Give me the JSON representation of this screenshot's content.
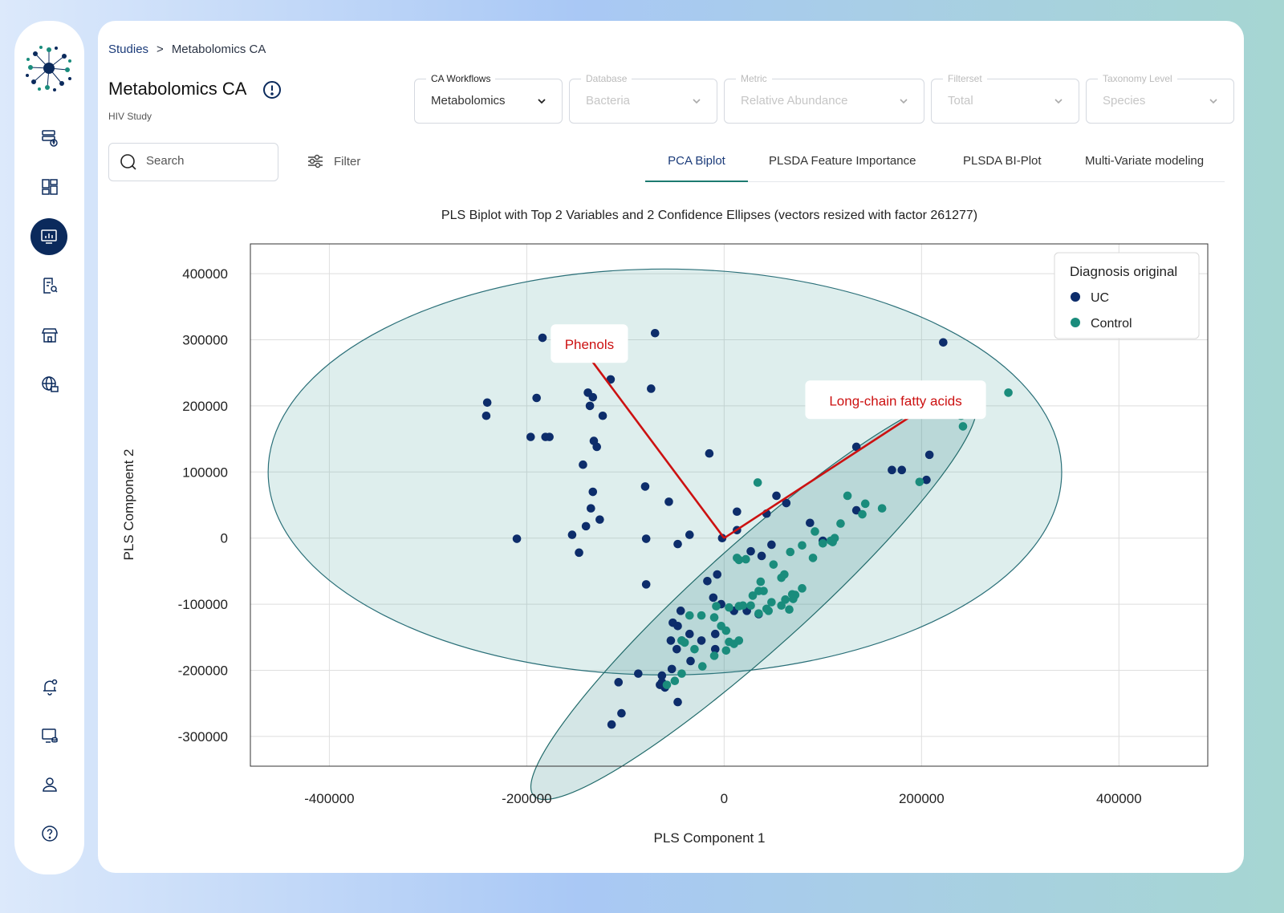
{
  "breadcrumb": {
    "root": "Studies",
    "separator": ">",
    "current": "Metabolomics CA"
  },
  "page": {
    "title": "Metabolomics CA",
    "subtitle": "HIV Study"
  },
  "dropdowns": [
    {
      "label": "CA Workflows",
      "value": "Metabolomics",
      "enabled": true
    },
    {
      "label": "Database",
      "value": "Bacteria",
      "enabled": false
    },
    {
      "label": "Metric",
      "value": "Relative Abundance",
      "enabled": false
    },
    {
      "label": "Filterset",
      "value": "Total",
      "enabled": false
    },
    {
      "label": "Taxonomy Level",
      "value": "Species",
      "enabled": false
    }
  ],
  "search": {
    "placeholder": "Search"
  },
  "filter": {
    "label": "Filter"
  },
  "tabs": [
    {
      "label": "PCA Biplot",
      "active": true
    },
    {
      "label": "PLSDA Feature Importance",
      "active": false
    },
    {
      "label": "PLSDA BI-Plot",
      "active": false
    },
    {
      "label": "Multi-Variate modeling",
      "active": false
    }
  ],
  "sidebar": {
    "items": [
      {
        "icon": "database-upload-icon"
      },
      {
        "icon": "dashboard-icon"
      },
      {
        "icon": "analytics-monitor-icon",
        "active": true
      },
      {
        "icon": "document-search-icon"
      },
      {
        "icon": "store-icon"
      },
      {
        "icon": "globe-server-icon"
      }
    ],
    "bottom_items": [
      {
        "icon": "notification-bell-icon"
      },
      {
        "icon": "monitor-database-icon"
      },
      {
        "icon": "user-icon"
      },
      {
        "icon": "help-icon"
      }
    ]
  },
  "colors": {
    "uc": "#0d2d6b",
    "control": "#1a8c7c",
    "vector": "#cc1111",
    "accent": "#1c3c7a"
  },
  "chart_data": {
    "type": "scatter",
    "title": "PLS Biplot with Top 2 Variables and 2 Confidence Ellipses (vectors resized with factor 261277)",
    "xlabel": "PLS  Component 1",
    "ylabel": "PLS  Component 2",
    "xlim": [
      -480000,
      490000
    ],
    "ylim": [
      -345000,
      445000
    ],
    "xticks": [
      -400000,
      -200000,
      0,
      200000,
      400000
    ],
    "yticks": [
      400000,
      300000,
      200000,
      100000,
      0,
      -100000,
      -200000,
      -300000
    ],
    "grid": true,
    "legend": {
      "title": "Diagnosis original",
      "placement": "top-right"
    },
    "vectors": [
      {
        "label": "Phenols",
        "x0": 0,
        "y0": 0,
        "x1": -135000,
        "y1": 270000
      },
      {
        "label": "Long-chain fatty acids",
        "x0": 0,
        "y0": 0,
        "x1": 190000,
        "y1": 185000
      }
    ],
    "ellipses": [
      {
        "series": "UC",
        "cx": -60000,
        "cy": 100000,
        "rx": 402000,
        "ry": 307000,
        "angle": 0
      },
      {
        "series": "Control",
        "cx": 30000,
        "cy": -90000,
        "rx": 300000,
        "ry": 80000,
        "angle": 42
      }
    ],
    "series": [
      {
        "name": "UC",
        "points": [
          [
            -184000,
            303000
          ],
          [
            -70000,
            310000
          ],
          [
            -240000,
            205000
          ],
          [
            -241000,
            185000
          ],
          [
            -190000,
            212000
          ],
          [
            -138000,
            220000
          ],
          [
            -133000,
            213000
          ],
          [
            -115000,
            240000
          ],
          [
            -74000,
            226000
          ],
          [
            -136000,
            200000
          ],
          [
            -123000,
            185000
          ],
          [
            -196000,
            153000
          ],
          [
            -181000,
            153000
          ],
          [
            -177000,
            153000
          ],
          [
            -132000,
            147000
          ],
          [
            -129000,
            138000
          ],
          [
            -143000,
            111000
          ],
          [
            -15000,
            128000
          ],
          [
            -80000,
            78000
          ],
          [
            -133000,
            70000
          ],
          [
            -135000,
            45000
          ],
          [
            -56000,
            55000
          ],
          [
            -126000,
            28000
          ],
          [
            -140000,
            18000
          ],
          [
            -154000,
            5000
          ],
          [
            -210000,
            -1000
          ],
          [
            -79000,
            -1000
          ],
          [
            -147000,
            -22000
          ],
          [
            -47000,
            -9000
          ],
          [
            -35000,
            5000
          ],
          [
            -2000,
            0
          ],
          [
            13000,
            12000
          ],
          [
            13000,
            40000
          ],
          [
            43000,
            37000
          ],
          [
            53000,
            64000
          ],
          [
            63000,
            53000
          ],
          [
            27000,
            -20000
          ],
          [
            38000,
            -27000
          ],
          [
            48000,
            -10000
          ],
          [
            -17000,
            -65000
          ],
          [
            -7000,
            -55000
          ],
          [
            -79000,
            -70000
          ],
          [
            -11000,
            -90000
          ],
          [
            -3000,
            -100000
          ],
          [
            10000,
            -110000
          ],
          [
            23000,
            -110000
          ],
          [
            35000,
            -115000
          ],
          [
            -44000,
            -110000
          ],
          [
            -52000,
            -128000
          ],
          [
            -47000,
            -133000
          ],
          [
            -35000,
            -145000
          ],
          [
            -23000,
            -155000
          ],
          [
            -9000,
            -145000
          ],
          [
            -54000,
            -155000
          ],
          [
            -43000,
            -155000
          ],
          [
            -48000,
            -168000
          ],
          [
            -9000,
            -168000
          ],
          [
            -34000,
            -186000
          ],
          [
            -53000,
            -198000
          ],
          [
            -63000,
            -208000
          ],
          [
            -87000,
            -205000
          ],
          [
            -107000,
            -218000
          ],
          [
            -63000,
            -218000
          ],
          [
            -60000,
            -226000
          ],
          [
            -65000,
            -222000
          ],
          [
            -47000,
            -248000
          ],
          [
            -104000,
            -265000
          ],
          [
            -114000,
            -282000
          ],
          [
            87000,
            23000
          ],
          [
            100000,
            -4000
          ],
          [
            134000,
            42000
          ],
          [
            134000,
            138000
          ],
          [
            170000,
            103000
          ],
          [
            180000,
            103000
          ],
          [
            208000,
            126000
          ],
          [
            205000,
            88000
          ],
          [
            222000,
            296000
          ]
        ]
      },
      {
        "name": "Control",
        "points": [
          [
            34000,
            84000
          ],
          [
            125000,
            64000
          ],
          [
            143000,
            52000
          ],
          [
            160000,
            45000
          ],
          [
            140000,
            36000
          ],
          [
            118000,
            22000
          ],
          [
            108000,
            -4000
          ],
          [
            100000,
            -8000
          ],
          [
            110000,
            -6000
          ],
          [
            92000,
            10000
          ],
          [
            79000,
            -11000
          ],
          [
            67000,
            -21000
          ],
          [
            90000,
            -30000
          ],
          [
            15000,
            -33000
          ],
          [
            22000,
            -32000
          ],
          [
            50000,
            -40000
          ],
          [
            37000,
            -66000
          ],
          [
            61000,
            -55000
          ],
          [
            58000,
            -60000
          ],
          [
            35000,
            -80000
          ],
          [
            40000,
            -80000
          ],
          [
            29000,
            -87000
          ],
          [
            48000,
            -97000
          ],
          [
            58000,
            -102000
          ],
          [
            66000,
            -108000
          ],
          [
            69000,
            -85000
          ],
          [
            72000,
            -86000
          ],
          [
            70000,
            -92000
          ],
          [
            79000,
            -76000
          ],
          [
            62000,
            -93000
          ],
          [
            15000,
            -103000
          ],
          [
            19000,
            -102000
          ],
          [
            27000,
            -102000
          ],
          [
            35000,
            -114000
          ],
          [
            43000,
            -107000
          ],
          [
            45000,
            -110000
          ],
          [
            -35000,
            -117000
          ],
          [
            -23000,
            -117000
          ],
          [
            -8000,
            -103000
          ],
          [
            5000,
            -105000
          ],
          [
            -10000,
            -120000
          ],
          [
            -3000,
            -133000
          ],
          [
            2000,
            -140000
          ],
          [
            -43000,
            -155000
          ],
          [
            -40000,
            -158000
          ],
          [
            -30000,
            -168000
          ],
          [
            5000,
            -157000
          ],
          [
            10000,
            -160000
          ],
          [
            15000,
            -155000
          ],
          [
            -10000,
            -178000
          ],
          [
            -22000,
            -194000
          ],
          [
            -43000,
            -205000
          ],
          [
            -58000,
            -222000
          ],
          [
            -50000,
            -216000
          ],
          [
            2000,
            -170000
          ],
          [
            198000,
            85000
          ],
          [
            205000,
            204000
          ],
          [
            240000,
            185000
          ],
          [
            242000,
            169000
          ],
          [
            288000,
            220000
          ],
          [
            112000,
            0
          ],
          [
            13000,
            -30000
          ]
        ]
      }
    ]
  }
}
